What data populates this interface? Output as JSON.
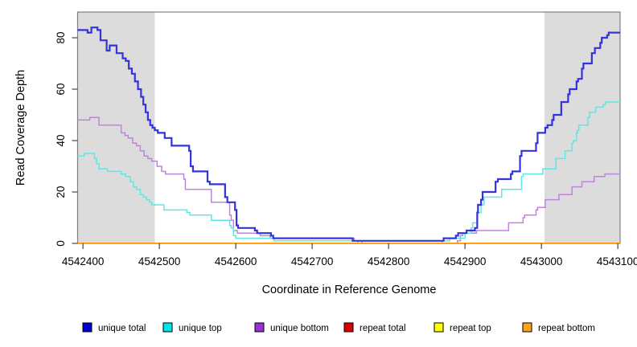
{
  "chart_data": {
    "type": "line",
    "subtype": "step-after",
    "title": "",
    "xlabel": "Coordinate in Reference Genome",
    "ylabel": "Read Coverage Depth",
    "x_axis": {
      "min": 4542393,
      "max": 4543103,
      "ticks": [
        4542400,
        4542500,
        4542600,
        4542700,
        4542800,
        4542900,
        4543000,
        4543100
      ],
      "tick_labels": [
        "4542400",
        "4542500",
        "4542600",
        "4542700",
        "4542800",
        "4542900",
        "4543000",
        "4543100"
      ]
    },
    "y_axis": {
      "min": 0,
      "max": 90,
      "ticks": [
        0,
        20,
        40,
        60,
        80
      ],
      "tick_labels": [
        "0",
        "20",
        "40",
        "60",
        "80"
      ]
    },
    "grid": false,
    "legend_position": "bottom",
    "shaded_regions": [
      {
        "x_start": 4542393,
        "x_end": 4542494,
        "color": "#DCDCDC"
      },
      {
        "x_start": 4543004,
        "x_end": 4543103,
        "color": "#DCDCDC"
      }
    ],
    "series": [
      {
        "name": "unique total",
        "color": "#3333DB",
        "legend_color": "#0000CC",
        "line_width": 2.2,
        "points": [
          [
            4542393,
            83
          ],
          [
            4542406,
            82
          ],
          [
            4542411,
            84
          ],
          [
            4542419,
            83
          ],
          [
            4542423,
            79
          ],
          [
            4542431,
            75
          ],
          [
            4542435,
            77
          ],
          [
            4542444,
            74
          ],
          [
            4542452,
            72
          ],
          [
            4542456,
            71
          ],
          [
            4542460,
            68
          ],
          [
            4542464,
            66
          ],
          [
            4542468,
            63
          ],
          [
            4542472,
            60
          ],
          [
            4542476,
            57
          ],
          [
            4542479,
            54
          ],
          [
            4542482,
            51
          ],
          [
            4542485,
            48
          ],
          [
            4542488,
            46
          ],
          [
            4542491,
            45
          ],
          [
            4542494,
            44
          ],
          [
            4542498,
            43
          ],
          [
            4542507,
            41
          ],
          [
            4542516,
            38
          ],
          [
            4542539,
            36
          ],
          [
            4542541,
            30
          ],
          [
            4542544,
            28
          ],
          [
            4542563,
            24
          ],
          [
            4542566,
            23
          ],
          [
            4542586,
            18
          ],
          [
            4542589,
            16
          ],
          [
            4542599,
            13
          ],
          [
            4542601,
            7
          ],
          [
            4542603,
            6
          ],
          [
            4542625,
            5
          ],
          [
            4542628,
            4
          ],
          [
            4542646,
            3
          ],
          [
            4542649,
            2
          ],
          [
            4542753,
            1
          ],
          [
            4542872,
            2
          ],
          [
            4542888,
            3
          ],
          [
            4542891,
            4
          ],
          [
            4542902,
            5
          ],
          [
            4542913,
            6
          ],
          [
            4542916,
            12
          ],
          [
            4542917,
            15
          ],
          [
            4542921,
            17
          ],
          [
            4542923,
            20
          ],
          [
            4542940,
            24
          ],
          [
            4542943,
            25
          ],
          [
            4542960,
            27
          ],
          [
            4542962,
            28
          ],
          [
            4542972,
            34
          ],
          [
            4542974,
            36
          ],
          [
            4542993,
            39
          ],
          [
            4542995,
            43
          ],
          [
            4543005,
            45
          ],
          [
            4543008,
            46
          ],
          [
            4543014,
            48
          ],
          [
            4543016,
            50
          ],
          [
            4543026,
            55
          ],
          [
            4543035,
            58
          ],
          [
            4543037,
            60
          ],
          [
            4543046,
            63
          ],
          [
            4543048,
            64
          ],
          [
            4543053,
            68
          ],
          [
            4543055,
            70
          ],
          [
            4543066,
            74
          ],
          [
            4543070,
            76
          ],
          [
            4543077,
            78
          ],
          [
            4543079,
            80
          ],
          [
            4543086,
            81
          ],
          [
            4543088,
            82
          ]
        ]
      },
      {
        "name": "unique top",
        "color": "#5FE6E6",
        "legend_color": "#00E5E5",
        "line_width": 1.5,
        "points": [
          [
            4542393,
            34
          ],
          [
            4542402,
            35
          ],
          [
            4542415,
            33
          ],
          [
            4542418,
            31
          ],
          [
            4542421,
            29
          ],
          [
            4542432,
            28
          ],
          [
            4542450,
            27
          ],
          [
            4542456,
            26
          ],
          [
            4542462,
            24
          ],
          [
            4542466,
            22
          ],
          [
            4542470,
            21
          ],
          [
            4542475,
            19
          ],
          [
            4542479,
            18
          ],
          [
            4542483,
            17
          ],
          [
            4542487,
            16
          ],
          [
            4542490,
            15
          ],
          [
            4542506,
            13
          ],
          [
            4542536,
            12
          ],
          [
            4542540,
            11
          ],
          [
            4542568,
            9
          ],
          [
            4542592,
            7
          ],
          [
            4542594,
            6
          ],
          [
            4542597,
            3
          ],
          [
            4542600,
            2
          ],
          [
            4542650,
            1
          ],
          [
            4542760,
            0
          ],
          [
            4542870,
            1
          ],
          [
            4542880,
            2
          ],
          [
            4542900,
            4
          ],
          [
            4542908,
            6
          ],
          [
            4542910,
            8
          ],
          [
            4542916,
            12
          ],
          [
            4542921,
            15
          ],
          [
            4542925,
            18
          ],
          [
            4542948,
            21
          ],
          [
            4542974,
            26
          ],
          [
            4542976,
            27
          ],
          [
            4543002,
            29
          ],
          [
            4543019,
            33
          ],
          [
            4543031,
            36
          ],
          [
            4543040,
            39
          ],
          [
            4543042,
            40
          ],
          [
            4543046,
            43
          ],
          [
            4543047,
            44
          ],
          [
            4543049,
            46
          ],
          [
            4543061,
            49
          ],
          [
            4543063,
            51
          ],
          [
            4543071,
            53
          ],
          [
            4543081,
            54
          ],
          [
            4543084,
            55
          ]
        ]
      },
      {
        "name": "unique bottom",
        "color": "#BD85DC",
        "legend_color": "#9B30D5",
        "line_width": 1.5,
        "points": [
          [
            4542393,
            48
          ],
          [
            4542409,
            49
          ],
          [
            4542421,
            46
          ],
          [
            4542450,
            43
          ],
          [
            4542455,
            42
          ],
          [
            4542459,
            41
          ],
          [
            4542465,
            39
          ],
          [
            4542470,
            38
          ],
          [
            4542475,
            36
          ],
          [
            4542480,
            34
          ],
          [
            4542485,
            33
          ],
          [
            4542490,
            32
          ],
          [
            4542497,
            30
          ],
          [
            4542503,
            28
          ],
          [
            4542508,
            27
          ],
          [
            4542532,
            25
          ],
          [
            4542534,
            21
          ],
          [
            4542568,
            16
          ],
          [
            4542592,
            11
          ],
          [
            4542594,
            9
          ],
          [
            4542597,
            5
          ],
          [
            4542602,
            4
          ],
          [
            4542632,
            3
          ],
          [
            4542645,
            2
          ],
          [
            4542755,
            1
          ],
          [
            4542765,
            0
          ],
          [
            4542890,
            1
          ],
          [
            4542894,
            3
          ],
          [
            4542897,
            4
          ],
          [
            4542915,
            5
          ],
          [
            4542957,
            8
          ],
          [
            4542976,
            10
          ],
          [
            4542978,
            11
          ],
          [
            4542993,
            13
          ],
          [
            4542995,
            14
          ],
          [
            4543005,
            17
          ],
          [
            4543023,
            19
          ],
          [
            4543040,
            22
          ],
          [
            4543053,
            24
          ],
          [
            4543069,
            26
          ],
          [
            4543083,
            27
          ]
        ]
      },
      {
        "name": "repeat total",
        "color": "#CC0000",
        "legend_color": "#DD0000",
        "line_width": 1.5,
        "points": [
          [
            4542393,
            0
          ]
        ]
      },
      {
        "name": "repeat top",
        "color": "#EEEE00",
        "legend_color": "#FFFF00",
        "line_width": 1.5,
        "points": [
          [
            4542393,
            0
          ]
        ]
      },
      {
        "name": "repeat bottom",
        "color": "#FF9900",
        "legend_color": "#FFA318",
        "line_width": 1.8,
        "points": [
          [
            4542393,
            0
          ]
        ]
      }
    ]
  }
}
